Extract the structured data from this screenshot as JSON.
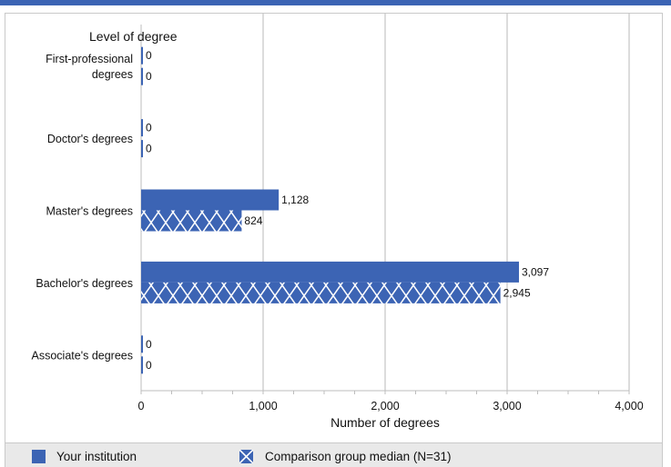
{
  "chart_data": {
    "type": "bar",
    "orientation": "horizontal",
    "y_axis_title": "Level of degree",
    "xlabel": "Number of degrees",
    "xlim": [
      0,
      4000
    ],
    "x_ticks": [
      "0",
      "1,000",
      "2,000",
      "3,000",
      "4,000"
    ],
    "x_tick_values": [
      0,
      1000,
      2000,
      3000,
      4000
    ],
    "categories": [
      [
        "First-professional",
        "degrees"
      ],
      [
        "Doctor's degrees"
      ],
      [
        "Master's degrees"
      ],
      [
        "Bachelor's degrees"
      ],
      [
        "Associate's degrees"
      ]
    ],
    "series": [
      {
        "name": "Your institution",
        "values": [
          0,
          0,
          1128,
          3097,
          0
        ],
        "labels": [
          "0",
          "0",
          "1,128",
          "3,097",
          "0"
        ],
        "color": "#3c64b4",
        "pattern": "solid"
      },
      {
        "name": "Comparison group median (N=31)",
        "values": [
          0,
          0,
          824,
          2945,
          0
        ],
        "labels": [
          "0",
          "0",
          "824",
          "2,945",
          "0"
        ],
        "color": "#3c64b4",
        "pattern": "cross-hatch"
      }
    ],
    "grid": "vertical",
    "legend": "bottom"
  },
  "legend": {
    "items": [
      "Your institution",
      "Comparison group median (N=31)"
    ]
  },
  "colors": {
    "accent": "#3c64b4",
    "grid": "#d0d0d0",
    "legend_background": "#e9e9e9"
  }
}
